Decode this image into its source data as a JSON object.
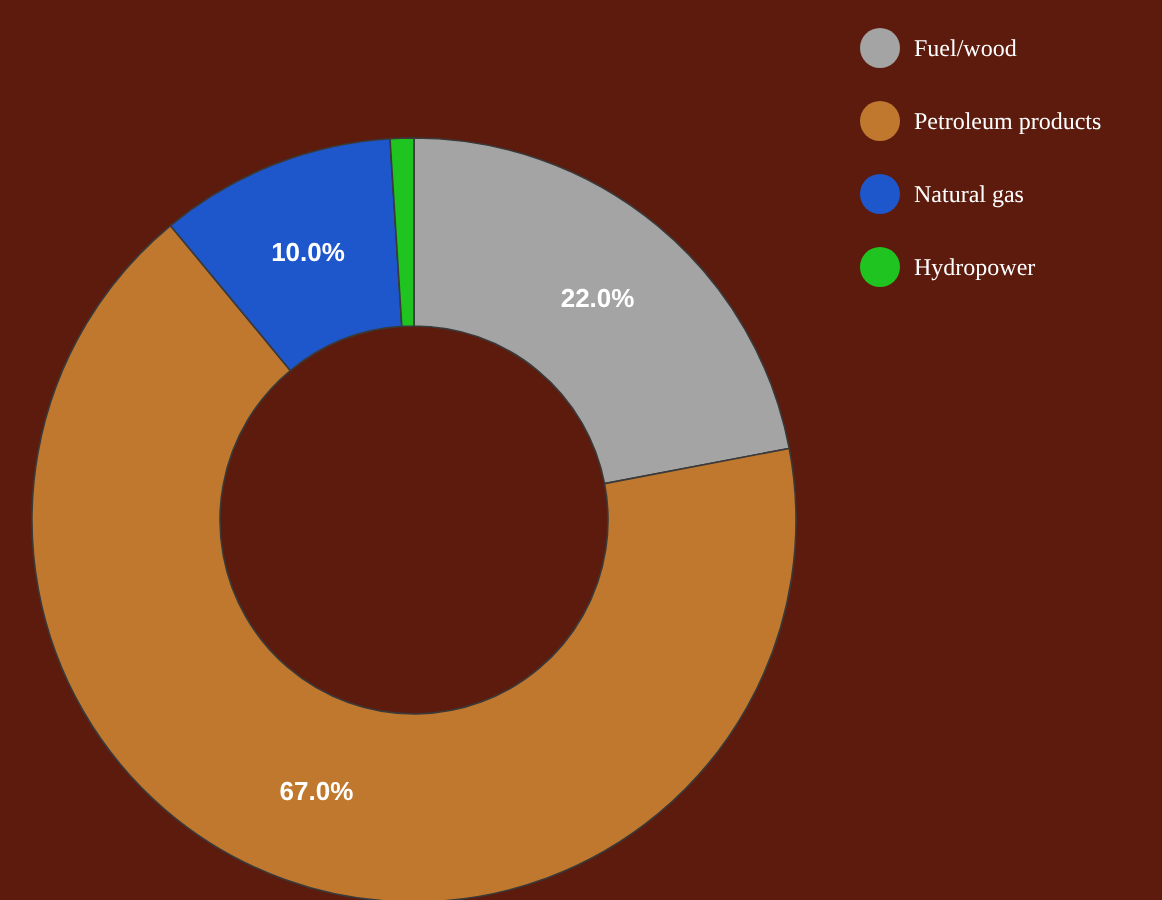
{
  "chart_data": {
    "type": "donut",
    "categories": [
      "Fuel/wood",
      "Petroleum products",
      "Natural gas",
      "Hydropower"
    ],
    "values": [
      22,
      67,
      10,
      1
    ],
    "colors": [
      "#a4a4a4",
      "#c0782f",
      "#1e56cb",
      "#20c420"
    ],
    "value_labels": [
      "22.0%",
      "67.0%",
      "10.0%",
      null
    ],
    "legend": "top right"
  }
}
